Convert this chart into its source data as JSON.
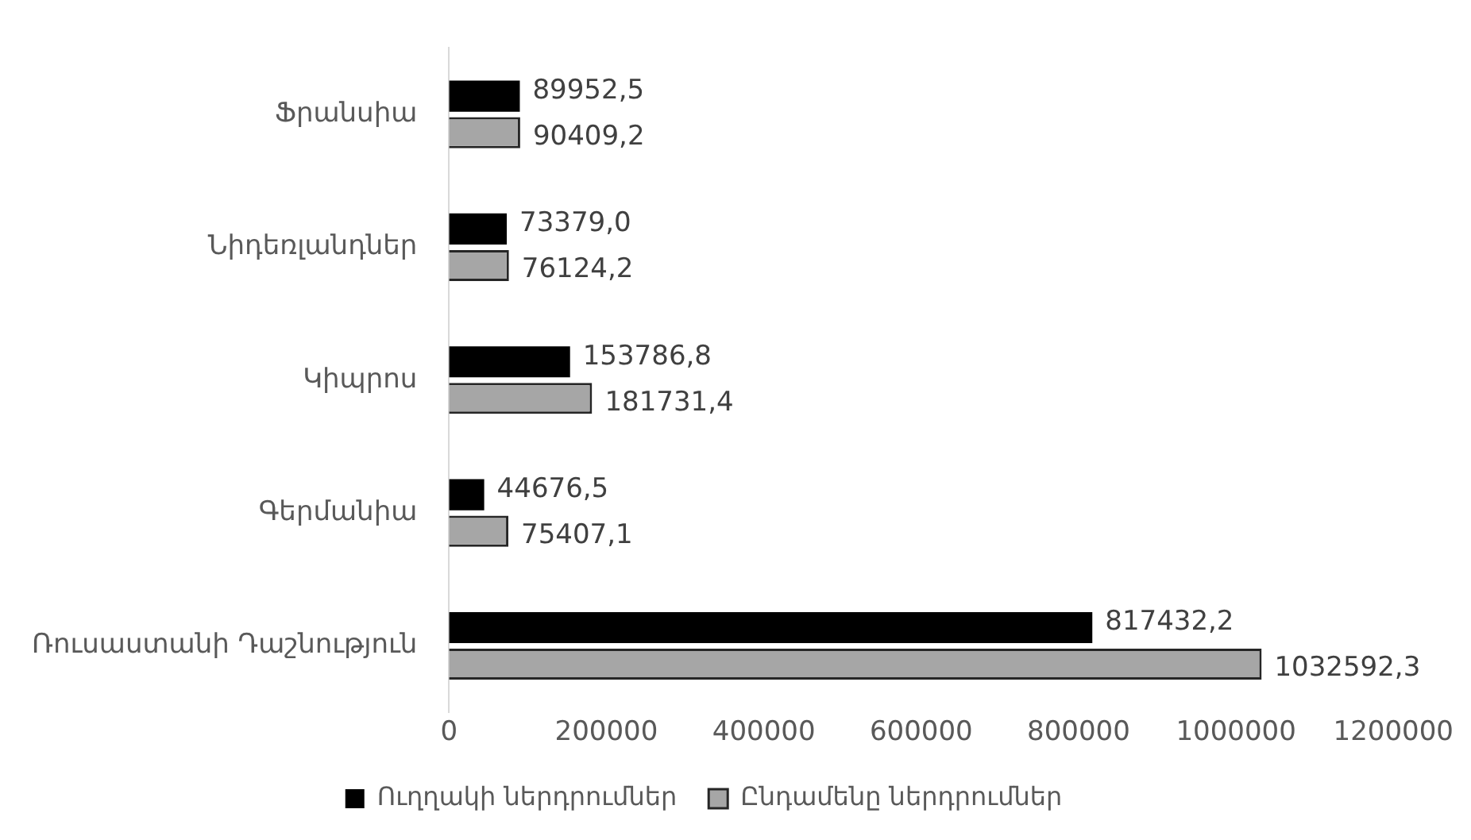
{
  "chart_data": {
    "type": "bar",
    "orientation": "horizontal",
    "categories": [
      "Ֆրանսիա",
      "Նիդեռլանդներ",
      "Կիպրոս",
      "Գերմանիա",
      "Ռուսաստանի Դաշնություն"
    ],
    "series": [
      {
        "name": "Ուղղակի ներդրումներ",
        "color": "#000000",
        "values": [
          89952.5,
          73379.0,
          153786.8,
          44676.5,
          817432.2
        ],
        "value_labels": [
          "89952,5",
          "73379,0",
          "153786,8",
          "44676,5",
          "817432,2"
        ]
      },
      {
        "name": "Ընդամենը ներդրումներ",
        "color": "#a6a6a6",
        "values": [
          90409.2,
          76124.2,
          181731.4,
          75407.1,
          1032592.3
        ],
        "value_labels": [
          "90409,2",
          "76124,2",
          "181731,4",
          "75407,1",
          "1032592,3"
        ]
      }
    ],
    "xlim": [
      0,
      1200000
    ],
    "xticks": [
      0,
      200000,
      400000,
      600000,
      800000,
      1000000,
      1200000
    ],
    "grid": false,
    "legend": "bottom"
  }
}
